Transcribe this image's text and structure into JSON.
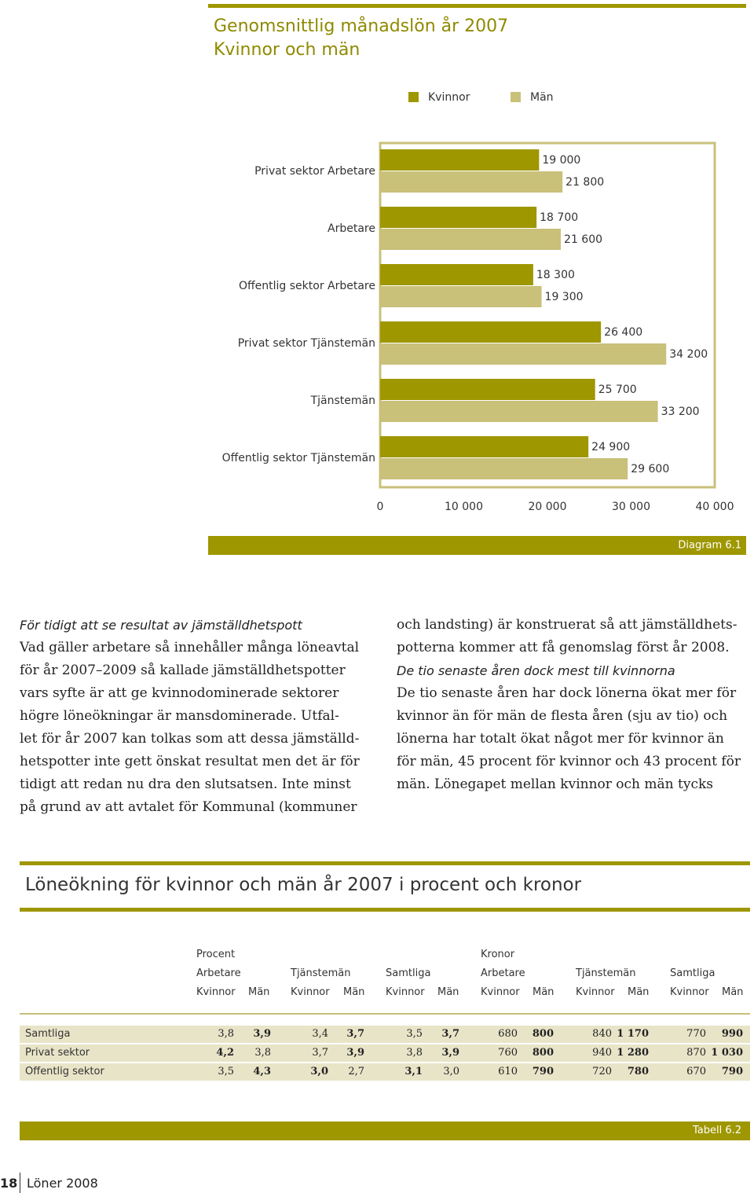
{
  "chart_data": {
    "type": "hbar",
    "title": "Genomsnittlig månadslön år 2007",
    "subtitle": "Kvinnor och män",
    "categories": [
      "Privat sektor Arbetare",
      "Arbetare",
      "Offentlig sektor Arbetare",
      "Privat sektor Tjänstemän",
      "Tjänstemän",
      "Offentlig sektor Tjänstemän"
    ],
    "series": [
      {
        "name": "Kvinnor",
        "color": "#9e9700",
        "values": [
          19000,
          18700,
          18300,
          26400,
          25700,
          24900
        ],
        "value_labels": [
          "19 000",
          "18 700",
          "18 300",
          "26 400",
          "25 700",
          "24 900"
        ]
      },
      {
        "name": "Män",
        "color": "#c9c07a",
        "values": [
          21800,
          21600,
          19300,
          34200,
          33200,
          29600
        ],
        "value_labels": [
          "21 800",
          "21 600",
          "19 300",
          "34 200",
          "33 200",
          "29 600"
        ]
      }
    ],
    "xlim": [
      0,
      40000
    ],
    "xticks": [
      0,
      {
        "value": 10000,
        "label": "10 000"
      },
      {
        "value": 20000,
        "label": "20 000"
      },
      {
        "value": 30000,
        "label": "30 000"
      },
      {
        "value": 40000,
        "label": "40 000"
      }
    ],
    "grid": false,
    "legend": "top",
    "caption": "Diagram 6.1"
  },
  "text": {
    "left": {
      "heading": "För tidigt att se resultat av jämställdhetspott",
      "lines": [
        "Vad gäller arbetare så innehåller många löneavtal",
        "för år 2007–2009 så kallade jämställdhetspotter",
        "vars syfte är att ge kvinnodominerade sektorer",
        "högre löneökningar är mansdominerade. Utfal-",
        "let för år 2007 kan tolkas som att dessa jämställd-",
        "hetspotter inte gett önskat resultat men det är för",
        "tidigt att redan nu dra den slutsatsen. Inte minst",
        "på grund av att avtalet för Kommunal (kommuner"
      ]
    },
    "right": {
      "lines_before": [
        "och landsting) är konstruerat så att jämställdhets-",
        "potterna kommer att få genomslag först år 2008."
      ],
      "heading": "De tio senaste åren dock mest till kvinnorna",
      "lines": [
        "De tio senaste åren har dock lönerna ökat mer för",
        "kvinnor än för män de flesta åren (sju av tio) och",
        "lönerna har totalt ökat något mer för kvinnor än",
        "för män, 45 procent för kvinnor och 43 procent för",
        "män. Lönegapet mellan kvinnor och män tycks"
      ]
    }
  },
  "table": {
    "title": "Löneökning för kvinnor och män år 2007 i procent och kronor",
    "groups": [
      "Procent",
      "Kronor"
    ],
    "subgroups": [
      "Arbetare",
      "Tjänstemän",
      "Samtliga",
      "Arbetare",
      "Tjänstemän",
      "Samtliga"
    ],
    "columns": [
      "Kvinnor",
      "Män",
      "Kvinnor",
      "Män",
      "Kvinnor",
      "Män",
      "Kvinnor",
      "Män",
      "Kvinnor",
      "Män",
      "Kvinnor",
      "Män"
    ],
    "rows": [
      [
        "Samtliga",
        "3,8",
        "3,9",
        "3,4",
        "3,7",
        "3,5",
        "3,7",
        "680",
        "800",
        "840",
        "1 170",
        "770",
        "990"
      ],
      [
        "Privat sektor",
        "4,2",
        "3,8",
        "3,7",
        "3,9",
        "3,8",
        "3,9",
        "760",
        "800",
        "940",
        "1 280",
        "870",
        "1 030"
      ],
      [
        "Offentlig sektor",
        "3,5",
        "4,3",
        "3,0",
        "2,7",
        "3,1",
        "3,0",
        "610",
        "790",
        "720",
        "780",
        "670",
        "790"
      ]
    ],
    "caption": "Tabell 6.2"
  },
  "footer": {
    "page": "18",
    "publication": "Löner 2008"
  }
}
